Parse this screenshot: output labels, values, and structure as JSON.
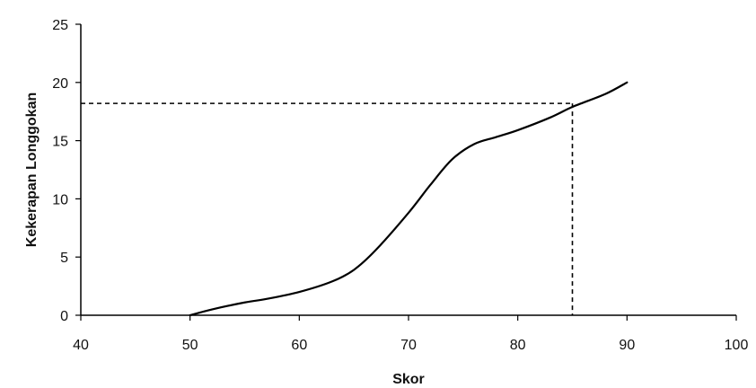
{
  "chart_data": {
    "type": "line",
    "title": "",
    "xlabel": "Skor",
    "ylabel": "Kekerapan Longgokan",
    "xlim": [
      40,
      100
    ],
    "ylim": [
      0,
      25
    ],
    "x_ticks": [
      40,
      50,
      60,
      70,
      80,
      90,
      100
    ],
    "y_ticks": [
      0,
      5,
      10,
      15,
      20,
      25
    ],
    "grid": false,
    "legend": "none",
    "series": [
      {
        "color": "#000000",
        "x": [
          50,
          52,
          55,
          57,
          60,
          63,
          65,
          67,
          70,
          72,
          74,
          76,
          78,
          80,
          83,
          85,
          88,
          90
        ],
        "y": [
          0,
          0.5,
          1.1,
          1.4,
          2,
          2.9,
          3.9,
          5.6,
          8.8,
          11.2,
          13.4,
          14.7,
          15.3,
          15.9,
          17,
          17.9,
          19,
          20
        ]
      }
    ],
    "reference_lines": [
      {
        "style": "dashed",
        "color": "#000000",
        "x": 85,
        "y": 18.2
      }
    ]
  }
}
